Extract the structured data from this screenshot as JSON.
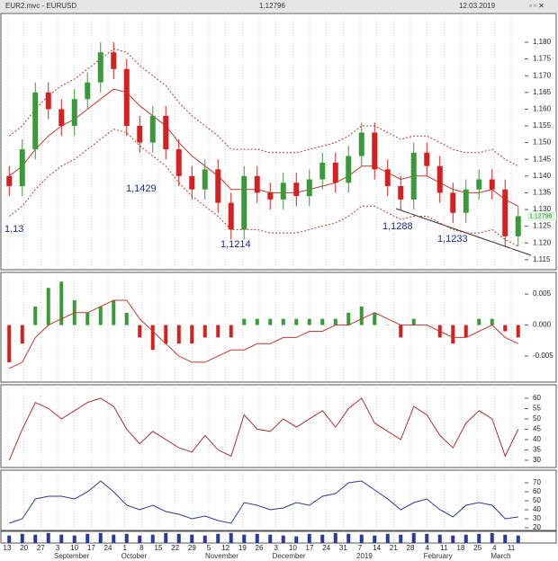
{
  "header": {
    "symbol": "EUR2.mvc - EURUSD",
    "price": "1.12796",
    "date": "12.03.2019"
  },
  "x_axis": {
    "labels": [
      "13",
      "20",
      "27",
      "3",
      "10",
      "17",
      "24",
      "1",
      "8",
      "15",
      "22",
      "29",
      "5",
      "12",
      "19",
      "26",
      "3",
      "10",
      "17",
      "24",
      "31",
      "7",
      "14",
      "21",
      "28",
      "4",
      "11",
      "18",
      "25",
      "4",
      "11"
    ],
    "months": [
      "September",
      "October",
      "November",
      "December",
      "2019",
      "February",
      "March"
    ]
  },
  "chart_data": [
    {
      "type": "candlestick",
      "up_color": "#3a9a3a",
      "down_color": "#d42020",
      "band_color": "#c0392b",
      "open": [
        1.14,
        1.137,
        1.148,
        1.165,
        1.16,
        1.155,
        1.163,
        1.168,
        1.177,
        1.172,
        1.155,
        1.15,
        1.158,
        1.148,
        1.14,
        1.136,
        1.142,
        1.132,
        1.124,
        1.14,
        1.135,
        1.133,
        1.138,
        1.134,
        1.139,
        1.144,
        1.138,
        1.146,
        1.153,
        1.142,
        1.137,
        1.133,
        1.147,
        1.143,
        1.135,
        1.129,
        1.136,
        1.139,
        1.136,
        1.122
      ],
      "high": [
        1.143,
        1.151,
        1.168,
        1.168,
        1.163,
        1.166,
        1.171,
        1.18,
        1.18,
        1.175,
        1.158,
        1.161,
        1.161,
        1.151,
        1.143,
        1.145,
        1.145,
        1.135,
        1.143,
        1.143,
        1.138,
        1.141,
        1.141,
        1.142,
        1.147,
        1.147,
        1.149,
        1.156,
        1.156,
        1.145,
        1.14,
        1.15,
        1.15,
        1.146,
        1.138,
        1.139,
        1.142,
        1.142,
        1.139,
        1.131
      ],
      "low": [
        1.134,
        1.134,
        1.145,
        1.157,
        1.152,
        1.152,
        1.16,
        1.165,
        1.169,
        1.152,
        1.147,
        1.147,
        1.145,
        1.137,
        1.133,
        1.133,
        1.129,
        1.121,
        1.121,
        1.132,
        1.13,
        1.13,
        1.131,
        1.131,
        1.136,
        1.135,
        1.135,
        1.143,
        1.139,
        1.134,
        1.13,
        1.13,
        1.14,
        1.132,
        1.126,
        1.126,
        1.133,
        1.133,
        1.119,
        1.119
      ],
      "close": [
        1.137,
        1.148,
        1.165,
        1.16,
        1.155,
        1.163,
        1.168,
        1.177,
        1.172,
        1.155,
        1.15,
        1.158,
        1.148,
        1.14,
        1.136,
        1.142,
        1.132,
        1.124,
        1.14,
        1.135,
        1.133,
        1.138,
        1.134,
        1.139,
        1.144,
        1.138,
        1.146,
        1.153,
        1.142,
        1.137,
        1.133,
        1.147,
        1.143,
        1.135,
        1.129,
        1.136,
        1.139,
        1.136,
        1.122,
        1.128
      ],
      "ma": [
        1.14,
        1.143,
        1.148,
        1.152,
        1.155,
        1.157,
        1.16,
        1.163,
        1.166,
        1.165,
        1.161,
        1.158,
        1.155,
        1.15,
        1.146,
        1.143,
        1.14,
        1.136,
        1.136,
        1.136,
        1.135,
        1.135,
        1.135,
        1.136,
        1.137,
        1.138,
        1.14,
        1.143,
        1.143,
        1.141,
        1.139,
        1.14,
        1.14,
        1.138,
        1.136,
        1.135,
        1.135,
        1.136,
        1.133,
        1.131
      ],
      "upper": [
        1.152,
        1.155,
        1.16,
        1.164,
        1.167,
        1.169,
        1.172,
        1.175,
        1.178,
        1.177,
        1.173,
        1.17,
        1.167,
        1.162,
        1.158,
        1.155,
        1.152,
        1.148,
        1.148,
        1.148,
        1.147,
        1.147,
        1.147,
        1.148,
        1.149,
        1.15,
        1.152,
        1.155,
        1.155,
        1.153,
        1.151,
        1.152,
        1.152,
        1.15,
        1.148,
        1.147,
        1.147,
        1.148,
        1.145,
        1.143
      ],
      "lower": [
        1.128,
        1.131,
        1.136,
        1.14,
        1.143,
        1.145,
        1.148,
        1.151,
        1.154,
        1.153,
        1.149,
        1.146,
        1.143,
        1.138,
        1.134,
        1.131,
        1.128,
        1.124,
        1.124,
        1.124,
        1.123,
        1.123,
        1.123,
        1.124,
        1.125,
        1.126,
        1.128,
        1.131,
        1.131,
        1.129,
        1.127,
        1.128,
        1.128,
        1.126,
        1.124,
        1.123,
        1.123,
        1.124,
        1.121,
        1.119
      ],
      "ylim": [
        1.112,
        1.1886
      ],
      "yticks": [
        {
          "value": 1.18,
          "label": "1.180"
        },
        {
          "value": 1.175,
          "label": "1.175"
        },
        {
          "value": 1.17,
          "label": "1.170"
        },
        {
          "value": 1.165,
          "label": "1.165"
        },
        {
          "value": 1.16,
          "label": "1.160"
        },
        {
          "value": 1.155,
          "label": "1.155"
        },
        {
          "value": 1.15,
          "label": "1.150"
        },
        {
          "value": 1.145,
          "label": "1.145"
        },
        {
          "value": 1.14,
          "label": "1.140"
        },
        {
          "value": 1.135,
          "label": "1.135"
        },
        {
          "value": 1.13,
          "label": "1.130"
        },
        {
          "value": 1.125,
          "label": "1.125"
        },
        {
          "value": 1.12,
          "label": "1.120"
        },
        {
          "value": 1.115,
          "label": "1.115"
        }
      ],
      "last_price": {
        "value": 1.12796,
        "label": "1.12796"
      },
      "annotations": [
        "1,13",
        "1,1429",
        "1,1214",
        "1,1288",
        "1,1233"
      ]
    },
    {
      "type": "bar",
      "pos_color": "#3a9a3a",
      "neg_color": "#d42020",
      "line_color": "#c0392b",
      "values": [
        -0.006,
        -0.003,
        0.003,
        0.006,
        0.007,
        0.004,
        0.002,
        0.003,
        0.004,
        0.002,
        -0.002,
        -0.004,
        -0.003,
        -0.003,
        -0.003,
        -0.002,
        -0.002,
        -0.002,
        0.001,
        0.001,
        0.001,
        0.001,
        0.001,
        0.001,
        0.001,
        0.001,
        0.002,
        0.003,
        0.002,
        0.0,
        -0.002,
        0.001,
        0.0,
        -0.002,
        -0.003,
        -0.002,
        0.001,
        0.001,
        -0.001,
        -0.002
      ],
      "line": [
        -0.007,
        -0.006,
        -0.002,
        0.0,
        0.001,
        0.002,
        0.002,
        0.003,
        0.004,
        0.004,
        0.001,
        -0.001,
        -0.003,
        -0.005,
        -0.006,
        -0.006,
        -0.005,
        -0.004,
        -0.004,
        -0.003,
        -0.003,
        -0.002,
        -0.002,
        -0.001,
        -0.001,
        0.0,
        0.0,
        0.001,
        0.002,
        0.001,
        0.0,
        0.0,
        0.0,
        -0.001,
        -0.002,
        -0.002,
        -0.001,
        0.0,
        -0.002,
        -0.003
      ],
      "ylim": [
        -0.0092,
        0.0085
      ],
      "yticks": [
        {
          "value": 0.005,
          "label": "0.005"
        },
        {
          "value": 0,
          "label": "0.000"
        },
        {
          "value": -0.005,
          "label": "-0.005"
        }
      ]
    },
    {
      "type": "line",
      "color": "#b03030",
      "values": [
        30,
        45,
        58,
        55,
        50,
        54,
        58,
        60,
        56,
        45,
        38,
        44,
        40,
        36,
        34,
        42,
        35,
        32,
        52,
        45,
        44,
        50,
        46,
        50,
        54,
        46,
        55,
        60,
        48,
        44,
        40,
        56,
        52,
        42,
        36,
        48,
        54,
        50,
        32,
        45
      ],
      "ylim": [
        26.5,
        66.5
      ],
      "yticks": [
        60,
        55,
        50,
        45,
        40,
        35,
        30
      ]
    },
    {
      "type": "line",
      "color": "#2a3a9a",
      "values": [
        25,
        30,
        52,
        55,
        55,
        52,
        60,
        72,
        60,
        45,
        40,
        45,
        38,
        35,
        30,
        33,
        28,
        25,
        48,
        45,
        40,
        42,
        48,
        45,
        55,
        58,
        70,
        72,
        62,
        52,
        40,
        48,
        52,
        40,
        32,
        45,
        48,
        45,
        30,
        32
      ],
      "ylim": [
        17,
        84
      ],
      "yticks": [
        70,
        60,
        50,
        40,
        30,
        20
      ]
    },
    {
      "type": "bar",
      "pos_color": "#2a3a9a",
      "values": [
        9,
        11,
        10,
        12,
        10,
        9,
        11,
        12,
        10,
        11,
        9,
        10,
        12,
        11,
        10,
        9,
        11,
        12,
        10,
        11,
        10,
        9,
        8,
        11,
        10,
        12,
        11,
        10,
        9,
        11,
        10,
        12,
        11,
        10,
        9,
        10,
        11,
        12,
        10,
        9
      ],
      "ylim": [
        0,
        14
      ]
    }
  ]
}
